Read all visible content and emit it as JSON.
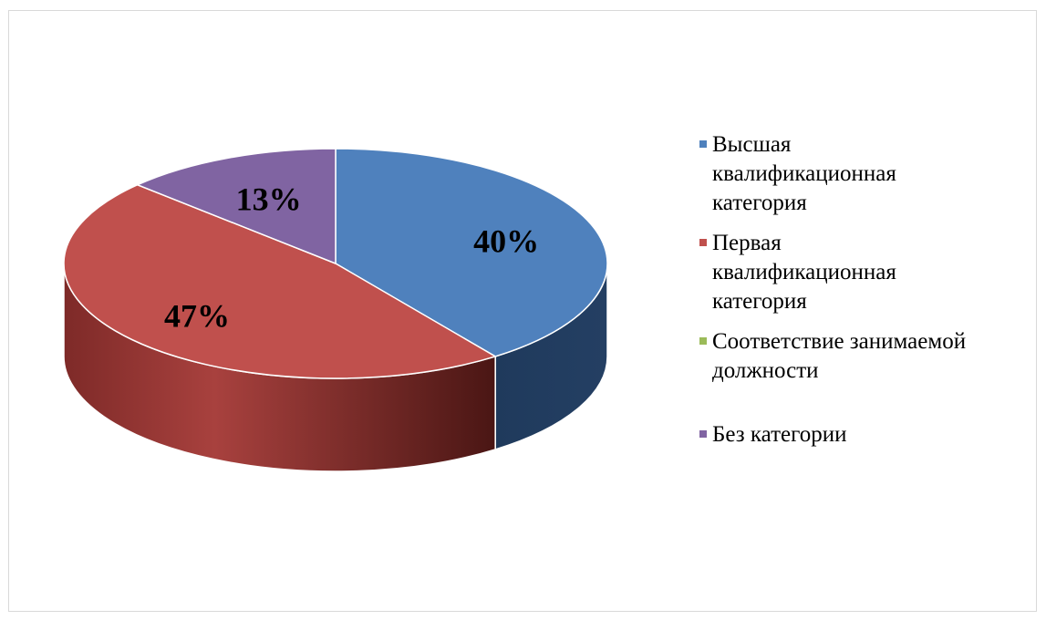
{
  "chart_data": {
    "type": "pie",
    "title": "",
    "categories": [
      "Высшая квалификационная категория",
      "Первая квалификационная категория",
      "Соответствие занимаемой должности",
      "Без категории"
    ],
    "values": [
      40,
      47,
      0,
      13
    ],
    "labels": [
      "40%",
      "47%",
      "",
      "13%"
    ],
    "colors": [
      "#4F81BD",
      "#C0504D",
      "#9BBB59",
      "#8064A2"
    ],
    "legend_position": "right",
    "style": "3d"
  },
  "legend": {
    "items": [
      {
        "text": "Высшая квалификационная категория",
        "color": "#4F81BD"
      },
      {
        "text": "Первая квалификационная категория",
        "color": "#C0504D"
      },
      {
        "text": "Соответствие занимаемой должности",
        "color": "#9BBB59"
      },
      {
        "text": "Без категории",
        "color": "#8064A2"
      }
    ]
  }
}
